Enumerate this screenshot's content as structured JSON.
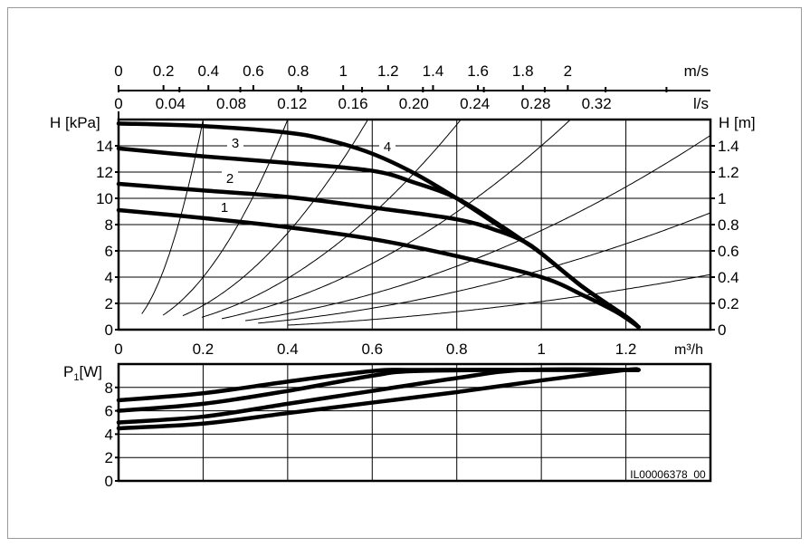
{
  "figure_id": "IL00006378_00",
  "chart_data": [
    {
      "type": "line",
      "panel": "head",
      "xlabel": "m³/h",
      "ylabel": "H [kPa]",
      "y2label": "H [m]",
      "xlim": [
        0,
        1.4
      ],
      "ylim": [
        0,
        16
      ],
      "y2lim": [
        0,
        1.6
      ],
      "grid": true,
      "xticks": [
        0,
        0.2,
        0.4,
        0.6,
        0.8,
        1,
        1.2
      ],
      "yticks": [
        0,
        2,
        4,
        6,
        8,
        10,
        12,
        14
      ],
      "y2ticks": [
        "0",
        "0.2",
        "0.4",
        "0.6",
        "0.8",
        "1",
        "1.2",
        "1.4"
      ],
      "top_axis_ls": {
        "label": "l/s",
        "ticks": [
          "0",
          "0.04",
          "0.08",
          "0.12",
          "0.16",
          "0.20",
          "0.24",
          "0.28",
          "0.32"
        ]
      },
      "top_axis_ms": {
        "label": "m/s",
        "ticks": [
          "0",
          "0.2",
          "0.4",
          "0.6",
          "0.8",
          "1",
          "1.2",
          "1.4",
          "1.6",
          "1.8",
          "2"
        ]
      },
      "series": [
        {
          "name": "1",
          "x": [
            0,
            0.2,
            0.4,
            0.6,
            0.8,
            1.0,
            1.1,
            1.18,
            1.23
          ],
          "y": [
            9.1,
            8.5,
            7.8,
            6.9,
            5.6,
            4.0,
            2.6,
            1.3,
            0.2
          ]
        },
        {
          "name": "2",
          "x": [
            0,
            0.2,
            0.4,
            0.6,
            0.8,
            0.9,
            0.96,
            1.0,
            1.1,
            1.2,
            1.23
          ],
          "y": [
            11.1,
            10.6,
            10.1,
            9.3,
            8.4,
            7.5,
            6.7,
            5.8,
            3.2,
            1.0,
            0.2
          ]
        },
        {
          "name": "3",
          "x": [
            0,
            0.2,
            0.4,
            0.6,
            0.7,
            0.8,
            0.9,
            0.96,
            1.0,
            1.1,
            1.2,
            1.23
          ],
          "y": [
            13.8,
            13.2,
            12.7,
            12.1,
            11.2,
            10.0,
            8.0,
            6.7,
            5.8,
            3.2,
            1.0,
            0.2
          ]
        },
        {
          "name": "4",
          "x": [
            0,
            0.2,
            0.4,
            0.5,
            0.6,
            0.7,
            0.8,
            0.9,
            0.96,
            1.0,
            1.1,
            1.2,
            1.23
          ],
          "y": [
            15.7,
            15.5,
            15.0,
            14.4,
            13.4,
            11.9,
            10.0,
            7.9,
            6.7,
            5.8,
            3.2,
            1.0,
            0.2
          ]
        }
      ],
      "system_curves": [
        {
          "k": 400,
          "x_start": 0.055
        },
        {
          "k": 100,
          "x_start": 0.105
        },
        {
          "k": 46,
          "x_start": 0.152
        },
        {
          "k": 24.4,
          "x_start": 0.197
        },
        {
          "k": 14,
          "x_start": 0.244
        },
        {
          "k": 7.55,
          "x_start": 0.3
        },
        {
          "k": 4.54,
          "x_start": 0.33
        },
        {
          "k": 2.14,
          "x_start": 0.4
        }
      ]
    },
    {
      "type": "line",
      "panel": "power",
      "ylabel_main": "P",
      "ylabel_sub": "1",
      "ylabel_unit": "[W]",
      "xlim": [
        0,
        1.4
      ],
      "ylim": [
        0,
        10
      ],
      "grid": true,
      "yticks": [
        0,
        2,
        4,
        6,
        8
      ],
      "series": [
        {
          "x": [
            0,
            0.2,
            0.4,
            0.6,
            0.7,
            0.96,
            1.23
          ],
          "y": [
            6.9,
            7.5,
            8.5,
            9.4,
            9.5,
            9.5,
            9.5
          ]
        },
        {
          "x": [
            0,
            0.2,
            0.4,
            0.6,
            0.7,
            0.96,
            1.23
          ],
          "y": [
            6.0,
            6.6,
            7.7,
            9.0,
            9.4,
            9.5,
            9.5
          ]
        },
        {
          "x": [
            0,
            0.2,
            0.4,
            0.6,
            0.8,
            0.96,
            1.23
          ],
          "y": [
            5.0,
            5.5,
            6.6,
            7.7,
            8.8,
            9.5,
            9.5
          ]
        },
        {
          "x": [
            0,
            0.2,
            0.4,
            0.6,
            0.8,
            1.0,
            1.2,
            1.23
          ],
          "y": [
            4.5,
            4.9,
            5.8,
            6.7,
            7.6,
            8.6,
            9.5,
            9.5
          ]
        }
      ]
    }
  ]
}
